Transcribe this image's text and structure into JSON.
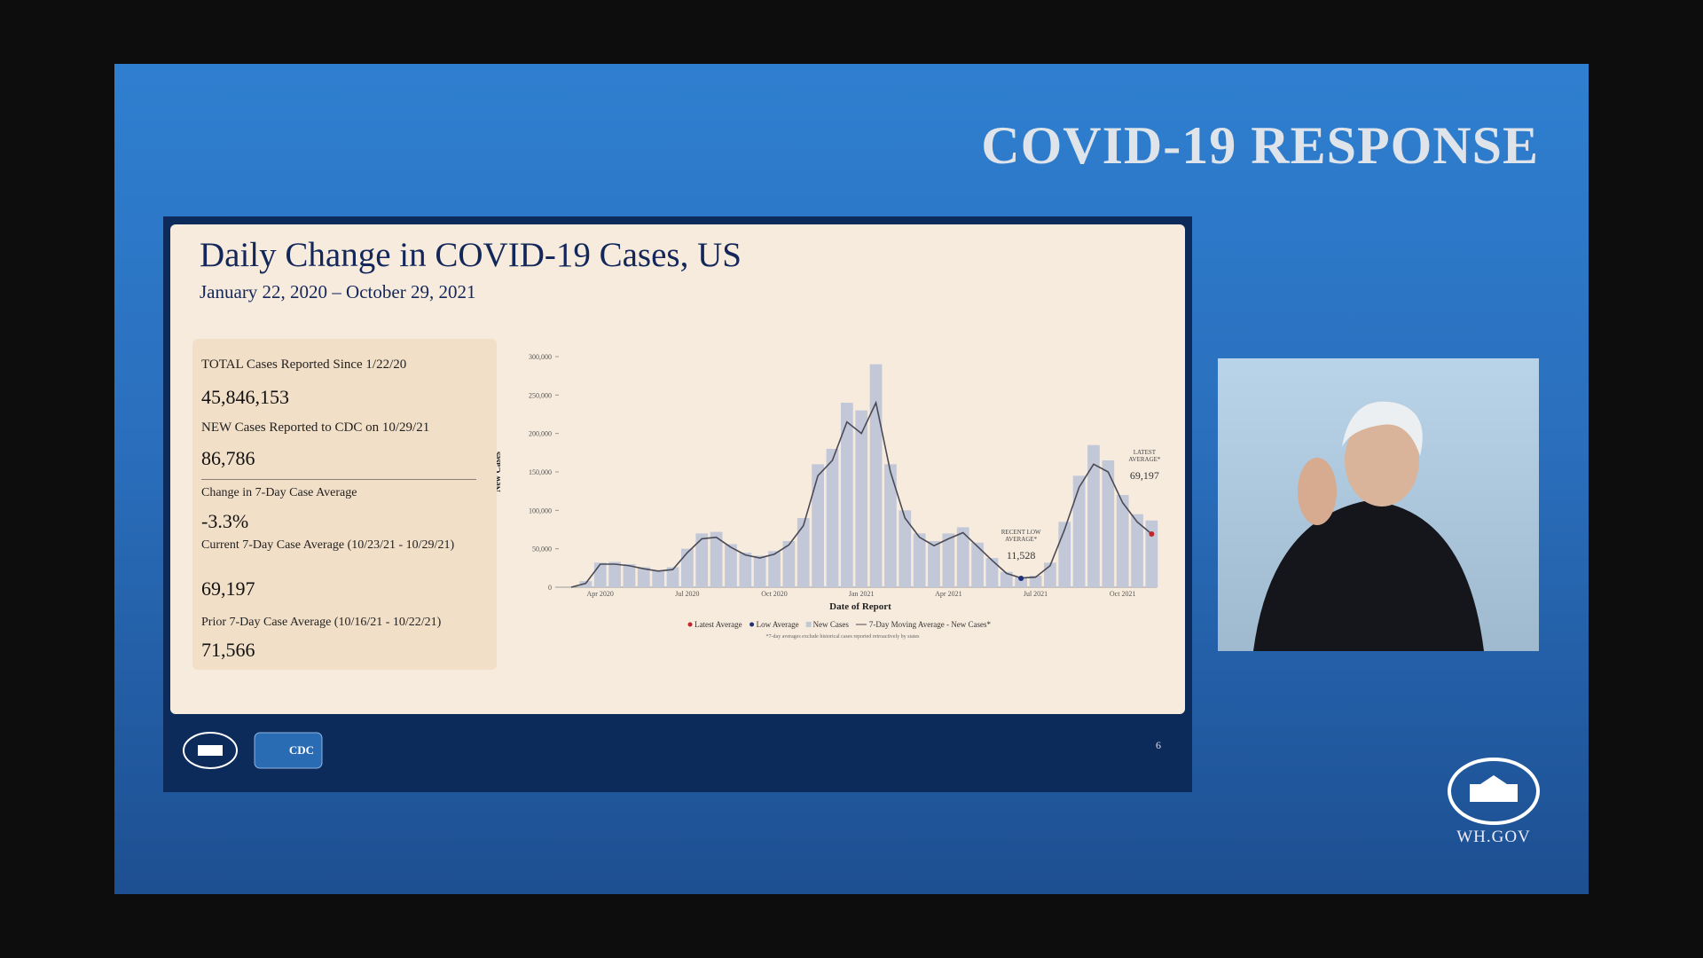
{
  "header": {
    "title": "COVID-19 RESPONSE"
  },
  "slide": {
    "title": "Daily Change in COVID-19 Cases, US",
    "subtitle": "January 22, 2020 – October 29, 2021",
    "stats": [
      {
        "label": "TOTAL Cases Reported Since 1/22/20",
        "value": "45,846,153"
      },
      {
        "label": "NEW Cases Reported to CDC on 10/29/21",
        "value": "86,786"
      },
      {
        "label": "Change in 7-Day Case Average",
        "value": "-3.3%"
      },
      {
        "label": "Current 7-Day Case Average (10/23/21 - 10/29/21)",
        "value": "69,197"
      },
      {
        "label": "Prior 7-Day Case Average (10/16/21 - 10/22/21)",
        "value": "71,566"
      }
    ],
    "cdc_logo": "CDC",
    "page_number": "6"
  },
  "footer": {
    "site": "WH.GOV"
  },
  "chart_data": {
    "type": "bar-line",
    "x_label": "Date of Report",
    "y_label": "New Cases",
    "footnote": "*7-day averages exclude historical cases reported retroactively by states",
    "categories": [
      null,
      null,
      "Apr 2020",
      null,
      null,
      null,
      null,
      null,
      "Jul 2020",
      null,
      null,
      null,
      null,
      null,
      "Oct 2020",
      null,
      null,
      null,
      null,
      null,
      "Jan 2021",
      null,
      null,
      null,
      null,
      null,
      "Apr 2021",
      null,
      null,
      null,
      null,
      null,
      "Jul 2021",
      null,
      null,
      null,
      null,
      null,
      "Oct 2021",
      null,
      null
    ],
    "ylim": [
      0,
      300000
    ],
    "yticks": [
      0,
      {
        "value": 50000,
        "label": "50,000"
      },
      {
        "value": 100000,
        "label": "100,000"
      },
      {
        "value": 150000,
        "label": "150,000"
      },
      {
        "value": 200000,
        "label": "200,000"
      },
      {
        "value": 250000,
        "label": "250,000"
      },
      {
        "value": 300000,
        "label": "300,000"
      }
    ],
    "series": [
      {
        "name": "Latest Average",
        "color": "#c0262b",
        "kind": "dot",
        "values": [
          null,
          null,
          null,
          null,
          null,
          null,
          null,
          null,
          null,
          null,
          null,
          null,
          null,
          null,
          null,
          null,
          null,
          null,
          null,
          null,
          null,
          null,
          null,
          null,
          null,
          null,
          null,
          null,
          null,
          null,
          null,
          null,
          null,
          null,
          null,
          null,
          null,
          null,
          null,
          null,
          69197
        ],
        "value_labels": [
          null,
          null,
          null,
          null,
          null,
          null,
          null,
          null,
          null,
          null,
          null,
          null,
          null,
          null,
          null,
          null,
          null,
          null,
          null,
          null,
          null,
          null,
          null,
          null,
          null,
          null,
          null,
          null,
          null,
          null,
          null,
          null,
          null,
          null,
          null,
          null,
          null,
          null,
          null,
          null,
          "69,197"
        ]
      },
      {
        "name": "Low Average",
        "color": "#1f2f7a",
        "kind": "dot",
        "values": [
          null,
          null,
          null,
          null,
          null,
          null,
          null,
          null,
          null,
          null,
          null,
          null,
          null,
          null,
          null,
          null,
          null,
          null,
          null,
          null,
          null,
          null,
          null,
          null,
          null,
          null,
          null,
          null,
          null,
          null,
          null,
          11528,
          null,
          null,
          null,
          null,
          null,
          null,
          null,
          null,
          null
        ],
        "value_labels": [
          null,
          null,
          null,
          null,
          null,
          null,
          null,
          null,
          null,
          null,
          null,
          null,
          null,
          null,
          null,
          null,
          null,
          null,
          null,
          null,
          null,
          null,
          null,
          null,
          null,
          null,
          null,
          null,
          null,
          null,
          null,
          "11,528",
          null,
          null,
          null,
          null,
          null,
          null,
          null,
          null,
          null
        ]
      },
      {
        "name": "New Cases",
        "color": "#c3c8d8",
        "kind": "bar",
        "values": [
          0,
          8000,
          32000,
          33000,
          30000,
          26000,
          22000,
          26000,
          50000,
          70000,
          72000,
          56000,
          45000,
          41000,
          47000,
          60000,
          90000,
          160000,
          180000,
          240000,
          230000,
          290000,
          160000,
          100000,
          70000,
          60000,
          70000,
          78000,
          58000,
          38000,
          20000,
          13000,
          15000,
          32000,
          85000,
          145000,
          185000,
          165000,
          120000,
          95000,
          86786
        ]
      },
      {
        "name": "7-Day Moving Average - New Cases*",
        "color": "#4a4a55",
        "kind": "line",
        "values": [
          0,
          5000,
          30000,
          30000,
          28000,
          24000,
          21000,
          23000,
          45000,
          63000,
          65000,
          52000,
          42000,
          38000,
          43000,
          55000,
          80000,
          145000,
          165000,
          215000,
          200000,
          240000,
          150000,
          90000,
          65000,
          54000,
          63000,
          71000,
          53000,
          35000,
          18000,
          12000,
          13000,
          28000,
          75000,
          130000,
          160000,
          150000,
          110000,
          85000,
          69197
        ]
      }
    ],
    "annotations": [
      {
        "lines": [
          "RECENT LOW",
          "AVERAGE*"
        ],
        "series": 1,
        "index": 31
      },
      {
        "lines": [
          "LATEST",
          "AVERAGE*"
        ],
        "series": 0,
        "index": 40
      }
    ]
  }
}
